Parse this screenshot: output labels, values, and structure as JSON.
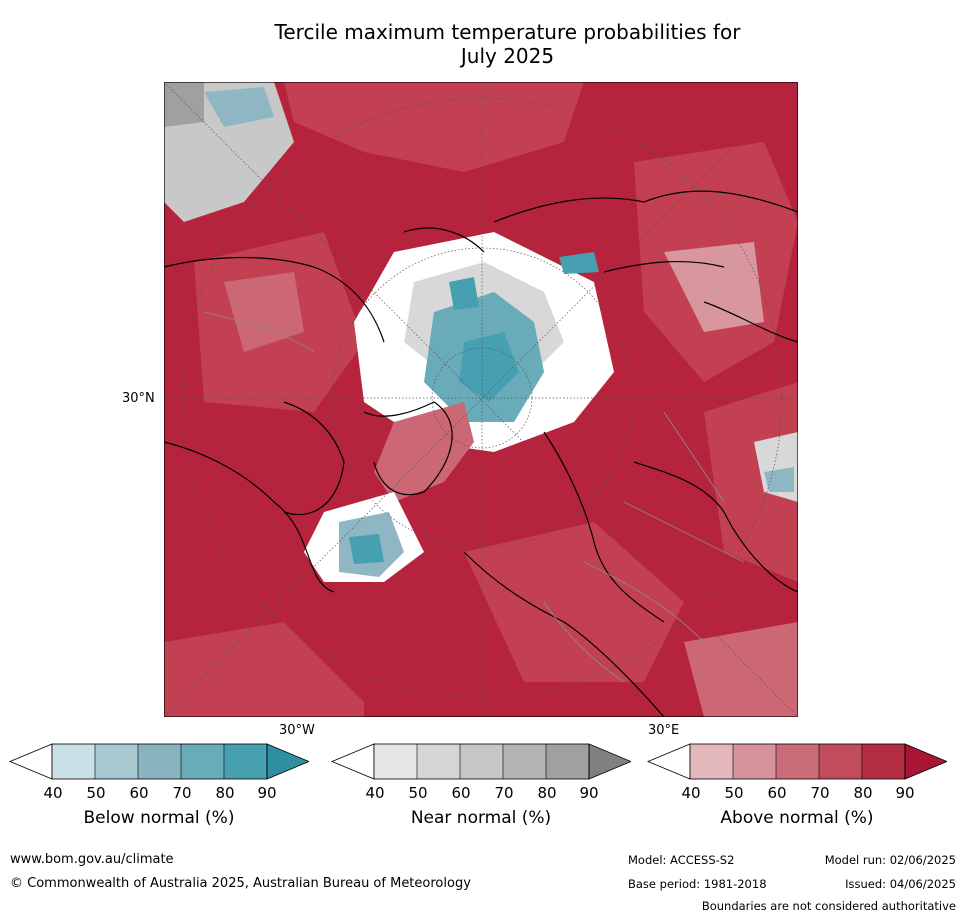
{
  "title_line1": "Tercile maximum temperature probabilities for",
  "title_line2": "July 2025",
  "map": {
    "lat_label": "30°N",
    "lon_labels": [
      "30°W",
      "30°E"
    ],
    "colors": {
      "above_70": "#c24052",
      "above_80": "#b5233d",
      "above_90": "#a81535",
      "above_60": "#cc6775",
      "above_50": "#d8969f",
      "below_60": "#8fb7c3",
      "below_70": "#6aabb9",
      "below_80": "#47a0b2",
      "near_60": "#c8c8c8",
      "near_70": "#b5b5b5",
      "near_80": "#a0a0a0",
      "land_outline": "#000000"
    }
  },
  "colorbars": [
    {
      "label": "Below normal (%)",
      "ticks": [
        "40",
        "50",
        "60",
        "70",
        "80",
        "90"
      ],
      "colors": [
        "#c8e0e6",
        "#a7c8cf",
        "#88b4c0",
        "#6aabb8",
        "#46a0b0",
        "#2e8fa3"
      ],
      "under_color": "#ffffff"
    },
    {
      "label": "Near normal (%)",
      "ticks": [
        "40",
        "50",
        "60",
        "70",
        "80",
        "90"
      ],
      "colors": [
        "#e6e6e6",
        "#d6d6d6",
        "#c6c6c6",
        "#b4b4b4",
        "#a0a0a0",
        "#808080"
      ],
      "under_color": "#ffffff"
    },
    {
      "label": "Above normal (%)",
      "ticks": [
        "40",
        "50",
        "60",
        "70",
        "80",
        "90"
      ],
      "colors": [
        "#e3b8bd",
        "#d7939c",
        "#cb6d79",
        "#c14c5c",
        "#b52d42",
        "#a81535"
      ],
      "under_color": "#ffffff"
    }
  ],
  "footer": {
    "url": "www.bom.gov.au/climate",
    "copyright": "© Commonwealth of Australia 2025, Australian Bureau of Meteorology",
    "model": "Model: ACCESS-S2",
    "base_period": "Base period: 1981-2018",
    "model_run": "Model run: 02/06/2025",
    "issued": "Issued: 04/06/2025",
    "disclaimer": "Boundaries are not considered authoritative"
  }
}
